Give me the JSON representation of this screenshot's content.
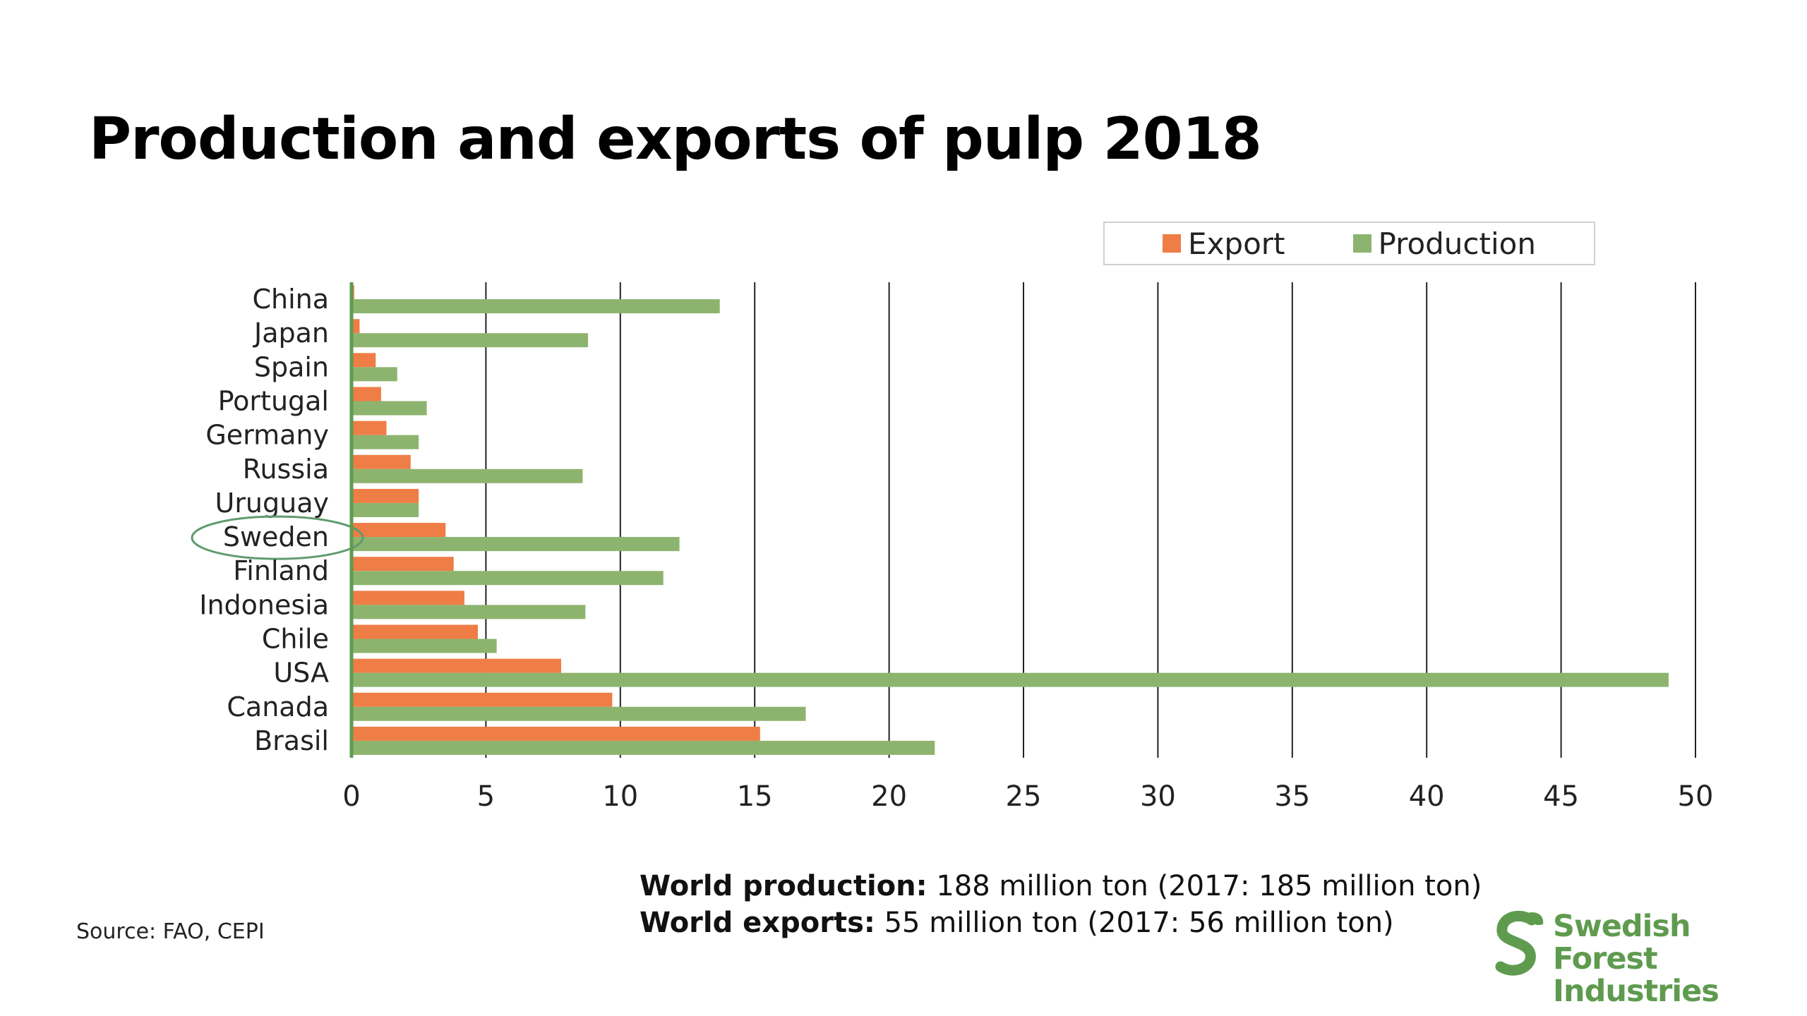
{
  "title": "Production and exports of pulp 2018",
  "legend": {
    "export": "Export",
    "production": "Production"
  },
  "colors": {
    "export": "#ef7d46",
    "production": "#8db46e",
    "gridline": "#222222",
    "highlight_ring": "#5f9b6f"
  },
  "chart_data": {
    "type": "bar",
    "orientation": "horizontal",
    "title": "Production and exports of pulp 2018",
    "categories": [
      "China",
      "Japan",
      "Spain",
      "Portugal",
      "Germany",
      "Russia",
      "Uruguay",
      "Sweden",
      "Finland",
      "Indonesia",
      "Chile",
      "USA",
      "Canada",
      "Brasil"
    ],
    "series": [
      {
        "name": "Export",
        "values": [
          0.1,
          0.3,
          0.9,
          1.1,
          1.3,
          2.2,
          2.5,
          3.5,
          3.8,
          4.2,
          4.7,
          7.8,
          9.7,
          15.2
        ]
      },
      {
        "name": "Production",
        "values": [
          13.7,
          8.8,
          1.7,
          2.8,
          2.5,
          8.6,
          2.5,
          12.2,
          11.6,
          8.7,
          5.4,
          49.0,
          16.9,
          21.7
        ]
      }
    ],
    "xlim": [
      0,
      50
    ],
    "xticks": [
      "0",
      "5",
      "10",
      "15",
      "20",
      "25",
      "30",
      "35",
      "40",
      "45",
      "50"
    ],
    "grid": "vertical",
    "legend_position": "top-right",
    "highlighted_category": "Sweden"
  },
  "stats": {
    "production_label": "World production:",
    "production_value": " 188 million ton (2017: 185 million ton)",
    "exports_label": "World exports:",
    "exports_value": " 55 million ton (2017: 56 million ton)"
  },
  "source": "Source: FAO, CEPI",
  "logo": {
    "line1": "Swedish Forest",
    "line2": "Industries",
    "icon": "s-leaf-logo-icon"
  }
}
